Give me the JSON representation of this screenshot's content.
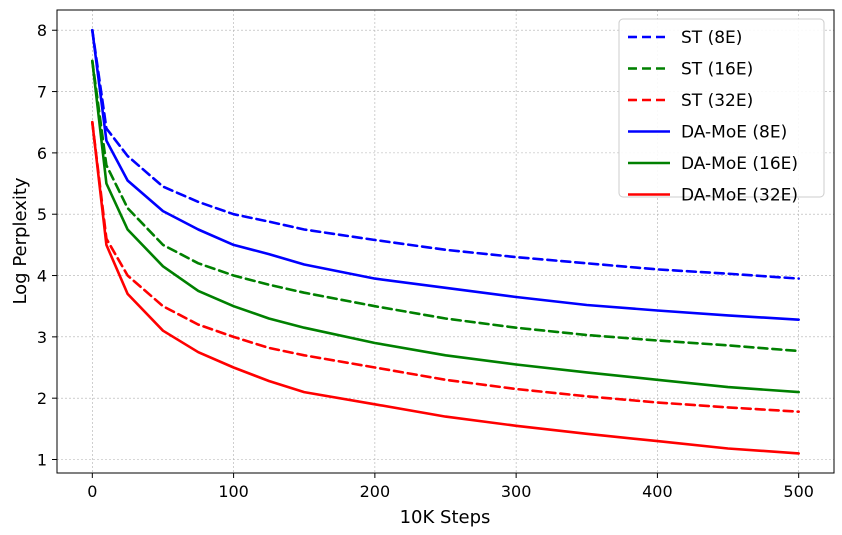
{
  "chart_data": {
    "type": "line",
    "title": "",
    "xlabel": "10K Steps",
    "ylabel": "Log Perplexity",
    "xlim": [
      -25,
      525
    ],
    "ylim": [
      0.78,
      8.33
    ],
    "xticks": [
      0,
      100,
      200,
      300,
      400,
      500
    ],
    "yticks": [
      1,
      2,
      3,
      4,
      5,
      6,
      7,
      8
    ],
    "grid": true,
    "legend_position": "top-right",
    "series": [
      {
        "name": "ST (8E)",
        "color": "#0000ff",
        "dash": "dashed",
        "x": [
          0,
          10,
          25,
          50,
          75,
          100,
          125,
          150,
          200,
          250,
          300,
          350,
          400,
          450,
          500
        ],
        "y": [
          8.0,
          6.4,
          5.95,
          5.45,
          5.2,
          5.0,
          4.88,
          4.75,
          4.58,
          4.42,
          4.3,
          4.2,
          4.1,
          4.03,
          3.95
        ]
      },
      {
        "name": "ST (16E)",
        "color": "#008000",
        "dash": "dashed",
        "x": [
          0,
          10,
          25,
          50,
          75,
          100,
          125,
          150,
          200,
          250,
          300,
          350,
          400,
          450,
          500
        ],
        "y": [
          7.5,
          5.8,
          5.1,
          4.5,
          4.2,
          4.0,
          3.85,
          3.72,
          3.5,
          3.3,
          3.15,
          3.03,
          2.94,
          2.86,
          2.77
        ]
      },
      {
        "name": "ST (32E)",
        "color": "#ff0000",
        "dash": "dashed",
        "x": [
          0,
          10,
          25,
          50,
          75,
          100,
          125,
          150,
          200,
          250,
          300,
          350,
          400,
          450,
          500
        ],
        "y": [
          6.5,
          4.6,
          4.0,
          3.5,
          3.2,
          3.0,
          2.82,
          2.7,
          2.5,
          2.3,
          2.15,
          2.03,
          1.93,
          1.85,
          1.78
        ]
      },
      {
        "name": "DA-MoE (8E)",
        "color": "#0000ff",
        "dash": "solid",
        "x": [
          0,
          10,
          25,
          50,
          75,
          100,
          125,
          150,
          200,
          250,
          300,
          350,
          400,
          450,
          500
        ],
        "y": [
          8.0,
          6.2,
          5.55,
          5.05,
          4.75,
          4.5,
          4.35,
          4.18,
          3.95,
          3.8,
          3.65,
          3.52,
          3.43,
          3.35,
          3.28
        ]
      },
      {
        "name": "DA-MoE (16E)",
        "color": "#008000",
        "dash": "solid",
        "x": [
          0,
          10,
          25,
          50,
          75,
          100,
          125,
          150,
          200,
          250,
          300,
          350,
          400,
          450,
          500
        ],
        "y": [
          7.5,
          5.5,
          4.75,
          4.15,
          3.75,
          3.5,
          3.3,
          3.15,
          2.9,
          2.7,
          2.55,
          2.42,
          2.3,
          2.18,
          2.1
        ]
      },
      {
        "name": "DA-MoE (32E)",
        "color": "#ff0000",
        "dash": "solid",
        "x": [
          0,
          10,
          25,
          50,
          75,
          100,
          125,
          150,
          200,
          250,
          300,
          350,
          400,
          450,
          500
        ],
        "y": [
          6.5,
          4.5,
          3.7,
          3.1,
          2.75,
          2.5,
          2.28,
          2.1,
          1.9,
          1.7,
          1.55,
          1.42,
          1.3,
          1.18,
          1.1
        ]
      }
    ]
  }
}
